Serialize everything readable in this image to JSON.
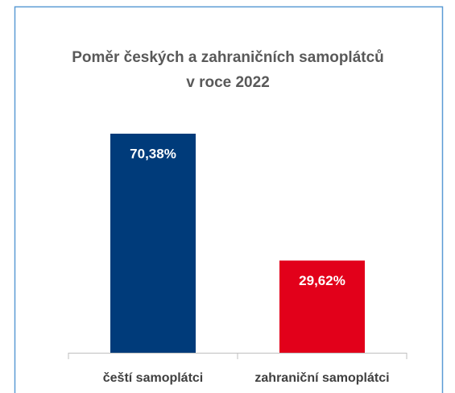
{
  "chart_data": {
    "type": "bar",
    "title": [
      "Poměr českých a zahraničních samoplátců",
      "v roce 2022"
    ],
    "categories": [
      "čeští samoplátci",
      "zahraniční samoplátci"
    ],
    "values": [
      70.38,
      29.62
    ],
    "value_labels": [
      "70,38%",
      "29,62%"
    ],
    "colors": [
      "#003b7a",
      "#e2001a"
    ]
  }
}
